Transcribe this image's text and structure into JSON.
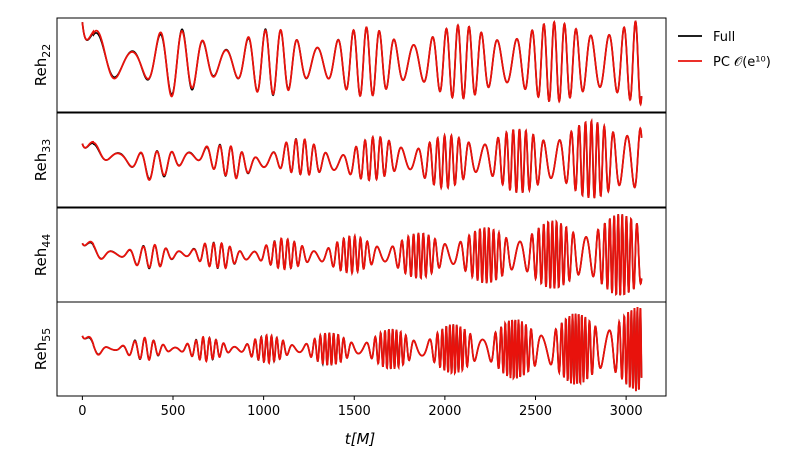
{
  "chart_data": {
    "type": "line",
    "xlabel": "t[M]",
    "xlim": [
      -140,
      3220
    ],
    "xticks": [
      "0",
      "500",
      "1000",
      "1500",
      "2000",
      "2500",
      "3000"
    ],
    "xtick_values": [
      0,
      500,
      1000,
      1500,
      2000,
      2500,
      3000
    ],
    "legend": {
      "placement": "outside-top-right",
      "entries": [
        {
          "label": "Full",
          "color": "#000000"
        },
        {
          "label": "PC 𝒪(e¹⁰)",
          "color": "#e8120c"
        }
      ]
    },
    "grid": false,
    "panels": [
      {
        "name": "h22",
        "ylabel_base": "Reh",
        "ylabel_sub": "22",
        "ylim": [
          -1.2,
          1.05
        ],
        "model": {
          "t_end": 3085,
          "a0": 0.62,
          "a1": 1.0,
          "phase_cycles": 33,
          "phase_power": 1.35,
          "ecc": 0.55,
          "ecc_period": 520,
          "baseline": 0.0,
          "start_spike": 0.95
        },
        "series": [
          {
            "name": "Full",
            "color": "#000000"
          },
          {
            "name": "PC 𝒪(e¹⁰)",
            "color": "#e8120c"
          }
        ]
      },
      {
        "name": "h33",
        "ylabel_base": "Reh",
        "ylabel_sub": "33",
        "ylim": [
          -1.15,
          1.15
        ],
        "model": {
          "t_end": 3085,
          "a0": 0.25,
          "a1": 1.0,
          "phase_cycles": 49,
          "phase_power": 1.35,
          "ecc": 0.65,
          "ecc_period": 400,
          "baseline": 0.15,
          "start_spike": 0.4
        },
        "series": [
          {
            "name": "Full",
            "color": "#000000"
          },
          {
            "name": "PC 𝒪(e¹⁰)",
            "color": "#e8120c"
          }
        ]
      },
      {
        "name": "h44",
        "ylabel_base": "Reh",
        "ylabel_sub": "44",
        "ylim": [
          -1.2,
          1.2
        ],
        "model": {
          "t_end": 3085,
          "a0": 0.2,
          "a1": 1.0,
          "phase_cycles": 66,
          "phase_power": 1.35,
          "ecc": 0.75,
          "ecc_period": 370,
          "baseline": 0.05,
          "start_spike": 0.3
        },
        "series": [
          {
            "name": "Full",
            "color": "#000000"
          },
          {
            "name": "PC 𝒪(e¹⁰)",
            "color": "#e8120c"
          }
        ]
      },
      {
        "name": "h55",
        "ylabel_base": "Reh",
        "ylabel_sub": "55",
        "ylim": [
          -1.25,
          1.25
        ],
        "model": {
          "t_end": 3085,
          "a0": 0.18,
          "a1": 1.0,
          "phase_cycles": 82,
          "phase_power": 1.35,
          "ecc": 0.85,
          "ecc_period": 340,
          "baseline": 0.0,
          "start_spike": 0.35
        },
        "series": [
          {
            "name": "Full",
            "color": "#000000"
          },
          {
            "name": "PC 𝒪(e¹⁰)",
            "color": "#e8120c"
          }
        ]
      }
    ]
  }
}
